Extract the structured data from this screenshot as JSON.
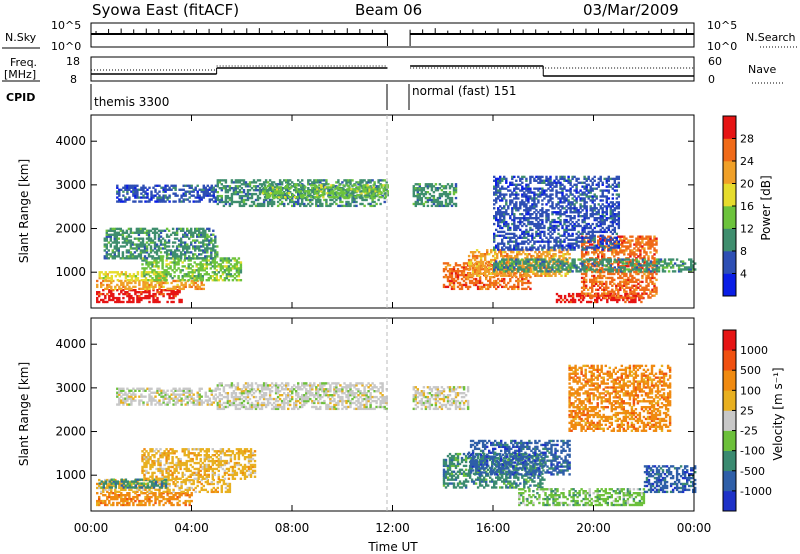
{
  "header": {
    "station": "Syowa East (fitACF)",
    "beam": "Beam 06",
    "date": "03/Mar/2009"
  },
  "strip": {
    "nsky_label": "N.Sky",
    "nsearch_label": "N.Search",
    "freq_label_line1": "Freq.",
    "freq_label_line2": "[MHz]",
    "nave_label": "Nave",
    "cpid_label": "CPID",
    "cpid_1": "themis 3300",
    "cpid_2": "normal (fast) 151",
    "nsky_ticks": [
      "10^5",
      "10^0"
    ],
    "freq_ticks": [
      "18",
      "8"
    ],
    "nave_ticks": [
      "60",
      "0"
    ]
  },
  "colors": {
    "power": [
      "#0a1ee6",
      "#2e4fb4",
      "#3f8e6e",
      "#6cc33c",
      "#e6dc2d",
      "#f0a028",
      "#f06a18",
      "#e61414"
    ],
    "velocity": [
      "#1e32c8",
      "#2f5fa8",
      "#3a8a70",
      "#6cc03a",
      "#c8c8c8",
      "#e8b020",
      "#f08a10",
      "#f05010",
      "#e61414"
    ]
  },
  "chart_data": [
    {
      "type": "heatmap",
      "panel": "power",
      "ylabel": "Slant Range [km]",
      "xlabel": "Time UT",
      "x_ticks": [
        "00:00",
        "04:00",
        "08:00",
        "12:00",
        "16:00",
        "20:00",
        "00:00"
      ],
      "x_range_hours": [
        0,
        24
      ],
      "y_ticks": [
        1000,
        2000,
        3000,
        4000
      ],
      "y_range_km": [
        180,
        4600
      ],
      "data_gap_hours": [
        11.8,
        12.7
      ],
      "colorbar_label": "Power [dB]",
      "colorbar_ticks": [
        "28",
        "24",
        "20",
        "16",
        "12",
        "8",
        "4"
      ],
      "colorbar_range": [
        0,
        32
      ],
      "bands": [
        {
          "t0": 0.2,
          "t1": 3.6,
          "r0": 300,
          "r1": 600,
          "level": 7
        },
        {
          "t0": 0.2,
          "t1": 4.5,
          "r0": 600,
          "r1": 800,
          "level": 5
        },
        {
          "t0": 0.3,
          "t1": 3.0,
          "r0": 800,
          "r1": 1000,
          "level": 4
        },
        {
          "t0": 2.0,
          "t1": 6.0,
          "r0": 800,
          "r1": 1300,
          "level": 3
        },
        {
          "t0": 0.5,
          "t1": 5.0,
          "r0": 1300,
          "r1": 2000,
          "level": 2
        },
        {
          "t0": 1.0,
          "t1": 5.0,
          "r0": 2600,
          "r1": 3000,
          "level": 1
        },
        {
          "t0": 5.0,
          "t1": 11.8,
          "r0": 2500,
          "r1": 3100,
          "level": 2
        },
        {
          "t0": 6.8,
          "t1": 11.8,
          "r0": 2700,
          "r1": 3000,
          "level": 3
        },
        {
          "t0": 12.8,
          "t1": 14.5,
          "r0": 2500,
          "r1": 3000,
          "level": 2
        },
        {
          "t0": 14.0,
          "t1": 17.5,
          "r0": 600,
          "r1": 1200,
          "level": 6
        },
        {
          "t0": 15.0,
          "t1": 19.0,
          "r0": 900,
          "r1": 1500,
          "level": 5
        },
        {
          "t0": 18.5,
          "t1": 22.0,
          "r0": 300,
          "r1": 500,
          "level": 7
        },
        {
          "t0": 19.5,
          "t1": 22.5,
          "r0": 400,
          "r1": 1800,
          "level": 6
        },
        {
          "t0": 16.0,
          "t1": 24.0,
          "r0": 1000,
          "r1": 1300,
          "level": 2
        },
        {
          "t0": 16.0,
          "t1": 21.0,
          "r0": 1500,
          "r1": 3200,
          "level": 1
        }
      ]
    },
    {
      "type": "heatmap",
      "panel": "velocity",
      "ylabel": "Slant Range [km]",
      "xlabel": "Time UT",
      "x_ticks": [
        "00:00",
        "04:00",
        "08:00",
        "12:00",
        "16:00",
        "20:00",
        "00:00"
      ],
      "x_range_hours": [
        0,
        24
      ],
      "y_ticks": [
        1000,
        2000,
        3000,
        4000
      ],
      "y_range_km": [
        180,
        4600
      ],
      "data_gap_hours": [
        11.8,
        12.7
      ],
      "colorbar_label": "Velocity [m s⁻¹]",
      "colorbar_ticks": [
        "1000",
        "500",
        "100",
        "25",
        "-25",
        "-100",
        "-500",
        "-1000"
      ],
      "bands": [
        {
          "t0": 0.2,
          "t1": 4.0,
          "r0": 300,
          "r1": 600,
          "level": 6
        },
        {
          "t0": 0.2,
          "t1": 5.5,
          "r0": 600,
          "r1": 900,
          "level": 5
        },
        {
          "t0": 0.3,
          "t1": 3.0,
          "r0": 700,
          "r1": 900,
          "level": 2
        },
        {
          "t0": 2.0,
          "t1": 6.5,
          "r0": 900,
          "r1": 1600,
          "level": 5
        },
        {
          "t0": 1.0,
          "t1": 5.0,
          "r0": 2600,
          "r1": 3000,
          "level": 4
        },
        {
          "t0": 5.0,
          "t1": 11.8,
          "r0": 2500,
          "r1": 3100,
          "level": 4
        },
        {
          "t0": 12.8,
          "t1": 15.0,
          "r0": 2500,
          "r1": 3000,
          "level": 4
        },
        {
          "t0": 14.0,
          "t1": 18.0,
          "r0": 700,
          "r1": 1500,
          "level": 2
        },
        {
          "t0": 15.0,
          "t1": 19.0,
          "r0": 1000,
          "r1": 1800,
          "level": 1
        },
        {
          "t0": 17.0,
          "t1": 22.0,
          "r0": 300,
          "r1": 700,
          "level": 3
        },
        {
          "t0": 19.0,
          "t1": 23.0,
          "r0": 2000,
          "r1": 3500,
          "level": 6
        },
        {
          "t0": 22.0,
          "t1": 24.0,
          "r0": 600,
          "r1": 1200,
          "level": 1
        }
      ]
    }
  ]
}
